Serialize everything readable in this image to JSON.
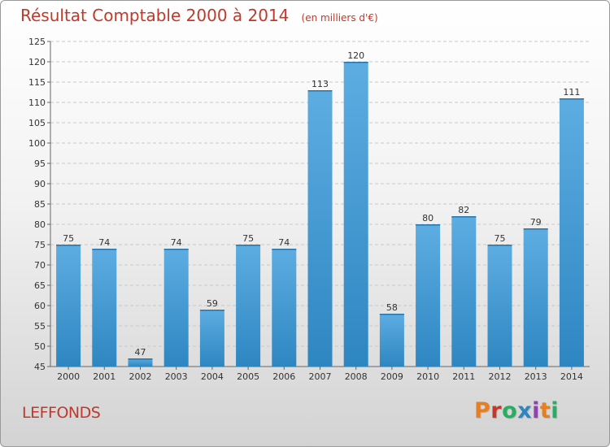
{
  "header": {
    "title": "Résultat Comptable 2000 à 2014",
    "subtitle": "(en milliers d'€)"
  },
  "footer": {
    "commune": "LEFFONDS",
    "logo": "Proxiti"
  },
  "colors": {
    "title": "#c0392b",
    "bar_top": "#5dade2",
    "bar_bottom": "#2e86c1",
    "logo": [
      "#e67e22",
      "#c0392b",
      "#27ae60",
      "#2e86c1",
      "#8e44ad",
      "#e67e22",
      "#27ae60"
    ]
  },
  "chart_data": {
    "type": "bar",
    "categories": [
      "2000",
      "2001",
      "2002",
      "2003",
      "2004",
      "2005",
      "2006",
      "2007",
      "2008",
      "2009",
      "2010",
      "2011",
      "2012",
      "2013",
      "2014"
    ],
    "values": [
      75,
      74,
      47,
      74,
      59,
      75,
      74,
      113,
      120,
      58,
      80,
      82,
      75,
      79,
      111
    ],
    "ylim": [
      45,
      125
    ],
    "yticks": [
      45,
      50,
      55,
      60,
      65,
      70,
      75,
      80,
      85,
      90,
      95,
      100,
      105,
      110,
      115,
      120,
      125
    ],
    "grid": true,
    "data_labels": true
  }
}
